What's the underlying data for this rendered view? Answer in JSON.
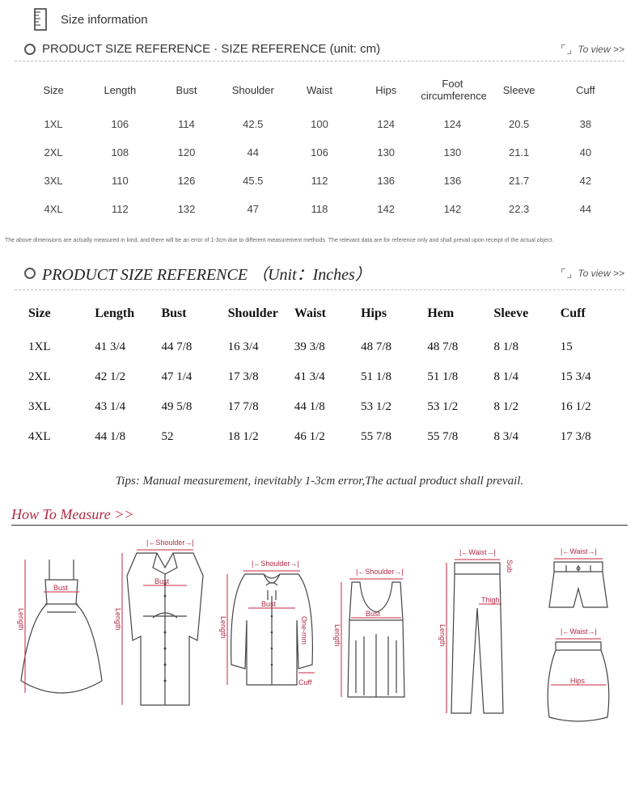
{
  "header": {
    "title": "Size information"
  },
  "section_cm": {
    "title": "PRODUCT SIZE REFERENCE · SIZE REFERENCE (unit: cm)",
    "to_view": "To view >>",
    "columns": [
      "Size",
      "Length",
      "Bust",
      "Shoulder",
      "Waist",
      "Hips",
      "Foot circumference",
      "Sleeve",
      "Cuff"
    ],
    "rows": [
      [
        "1XL",
        "106",
        "114",
        "42.5",
        "100",
        "124",
        "124",
        "20.5",
        "38"
      ],
      [
        "2XL",
        "108",
        "120",
        "44",
        "106",
        "130",
        "130",
        "21.1",
        "40"
      ],
      [
        "3XL",
        "110",
        "126",
        "45.5",
        "112",
        "136",
        "136",
        "21.7",
        "42"
      ],
      [
        "4XL",
        "112",
        "132",
        "47",
        "118",
        "142",
        "142",
        "22.3",
        "44"
      ]
    ],
    "disclaimer": "The above dimensions are actually measured in kind, and there will be an error of 1-3cm due to different measurement methods. The relevant data are for reference only and shall prevail upon receipt of the actual object."
  },
  "section_in": {
    "title": "PRODUCT SIZE REFERENCE （Unit：Inches）",
    "to_view": "To view >>",
    "columns": [
      "Size",
      "Length",
      "Bust",
      "Shoulder",
      "Waist",
      "Hips",
      "Hem",
      "Sleeve",
      "Cuff"
    ],
    "rows": [
      [
        "1XL",
        "41 3/4",
        "44 7/8",
        "16 3/4",
        "39 3/8",
        "48 7/8",
        "48 7/8",
        "8 1/8",
        "15"
      ],
      [
        "2XL",
        "42 1/2",
        "47 1/4",
        "17 3/8",
        "41 3/4",
        "51 1/8",
        "51 1/8",
        "8 1/4",
        "15 3/4"
      ],
      [
        "3XL",
        "43 1/4",
        "49 5/8",
        "17 7/8",
        "44 1/8",
        "53 1/2",
        "53 1/2",
        "8 1/2",
        "16 1/2"
      ],
      [
        "4XL",
        "44 1/8",
        "52",
        "18 1/2",
        "46 1/2",
        "55 7/8",
        "55 7/8",
        "8 3/4",
        "17 3/8"
      ]
    ],
    "tips": "Tips: Manual measurement, inevitably 1-3cm error,The actual product shall prevail."
  },
  "how_to_measure": {
    "title": "How To Measure",
    "arrows": ">>",
    "labels": {
      "shoulder": "Shoulder",
      "bust": "Bust",
      "length": "Length",
      "cuff": "Cuff",
      "waist": "Waist",
      "hips": "Hips",
      "thigh": "Thigh",
      "onemm": "One-mm",
      "sub": "Sub"
    },
    "colors": {
      "accent": "#c9253f",
      "line": "#444444",
      "text": "#b12a45"
    }
  }
}
